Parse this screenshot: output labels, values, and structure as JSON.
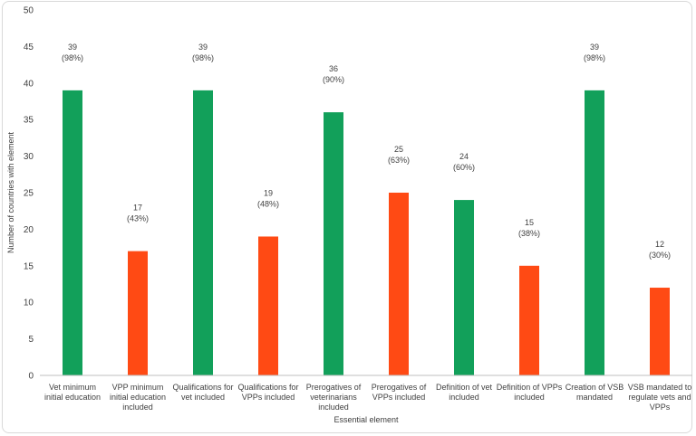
{
  "chart_data": {
    "type": "bar",
    "title": "",
    "xlabel": "Essential element",
    "ylabel": "Number of countries with element",
    "ylim": [
      0,
      50
    ],
    "yticks": [
      "0",
      "5",
      "10",
      "15",
      "20",
      "25",
      "30",
      "35",
      "40",
      "45",
      "50"
    ],
    "grid": false,
    "categories": [
      [
        "Vet minimum",
        "initial education"
      ],
      [
        "VPP minimum",
        "initial education",
        "included"
      ],
      [
        "Qualifications for",
        "vet included"
      ],
      [
        "Qualifications for",
        "VPPs included"
      ],
      [
        "Prerogatives of",
        "veterinarians",
        "included"
      ],
      [
        "Prerogatives of",
        "VPPs included"
      ],
      [
        "Definition of vet",
        "included"
      ],
      [
        "Definition of VPPs",
        "included"
      ],
      [
        "Creation of VSB",
        "mandated"
      ],
      [
        "VSB mandated to",
        "regulate vets and",
        "VPPs"
      ]
    ],
    "values": [
      39,
      17,
      39,
      19,
      36,
      25,
      24,
      15,
      39,
      12
    ],
    "data_labels": [
      [
        "39",
        "(98%)"
      ],
      [
        "17",
        "(43%)"
      ],
      [
        "39",
        "(98%)"
      ],
      [
        "19",
        "(48%)"
      ],
      [
        "36",
        "(90%)"
      ],
      [
        "25",
        "(63%)"
      ],
      [
        "24",
        "(60%)"
      ],
      [
        "15",
        "(38%)"
      ],
      [
        "39",
        "(98%)"
      ],
      [
        "12",
        "(30%)"
      ]
    ],
    "colors": [
      "#12a05a",
      "#ff4a14",
      "#12a05a",
      "#ff4a14",
      "#12a05a",
      "#ff4a14",
      "#12a05a",
      "#ff4a14",
      "#12a05a",
      "#ff4a14"
    ],
    "axis_color": "#bfbfbf"
  }
}
